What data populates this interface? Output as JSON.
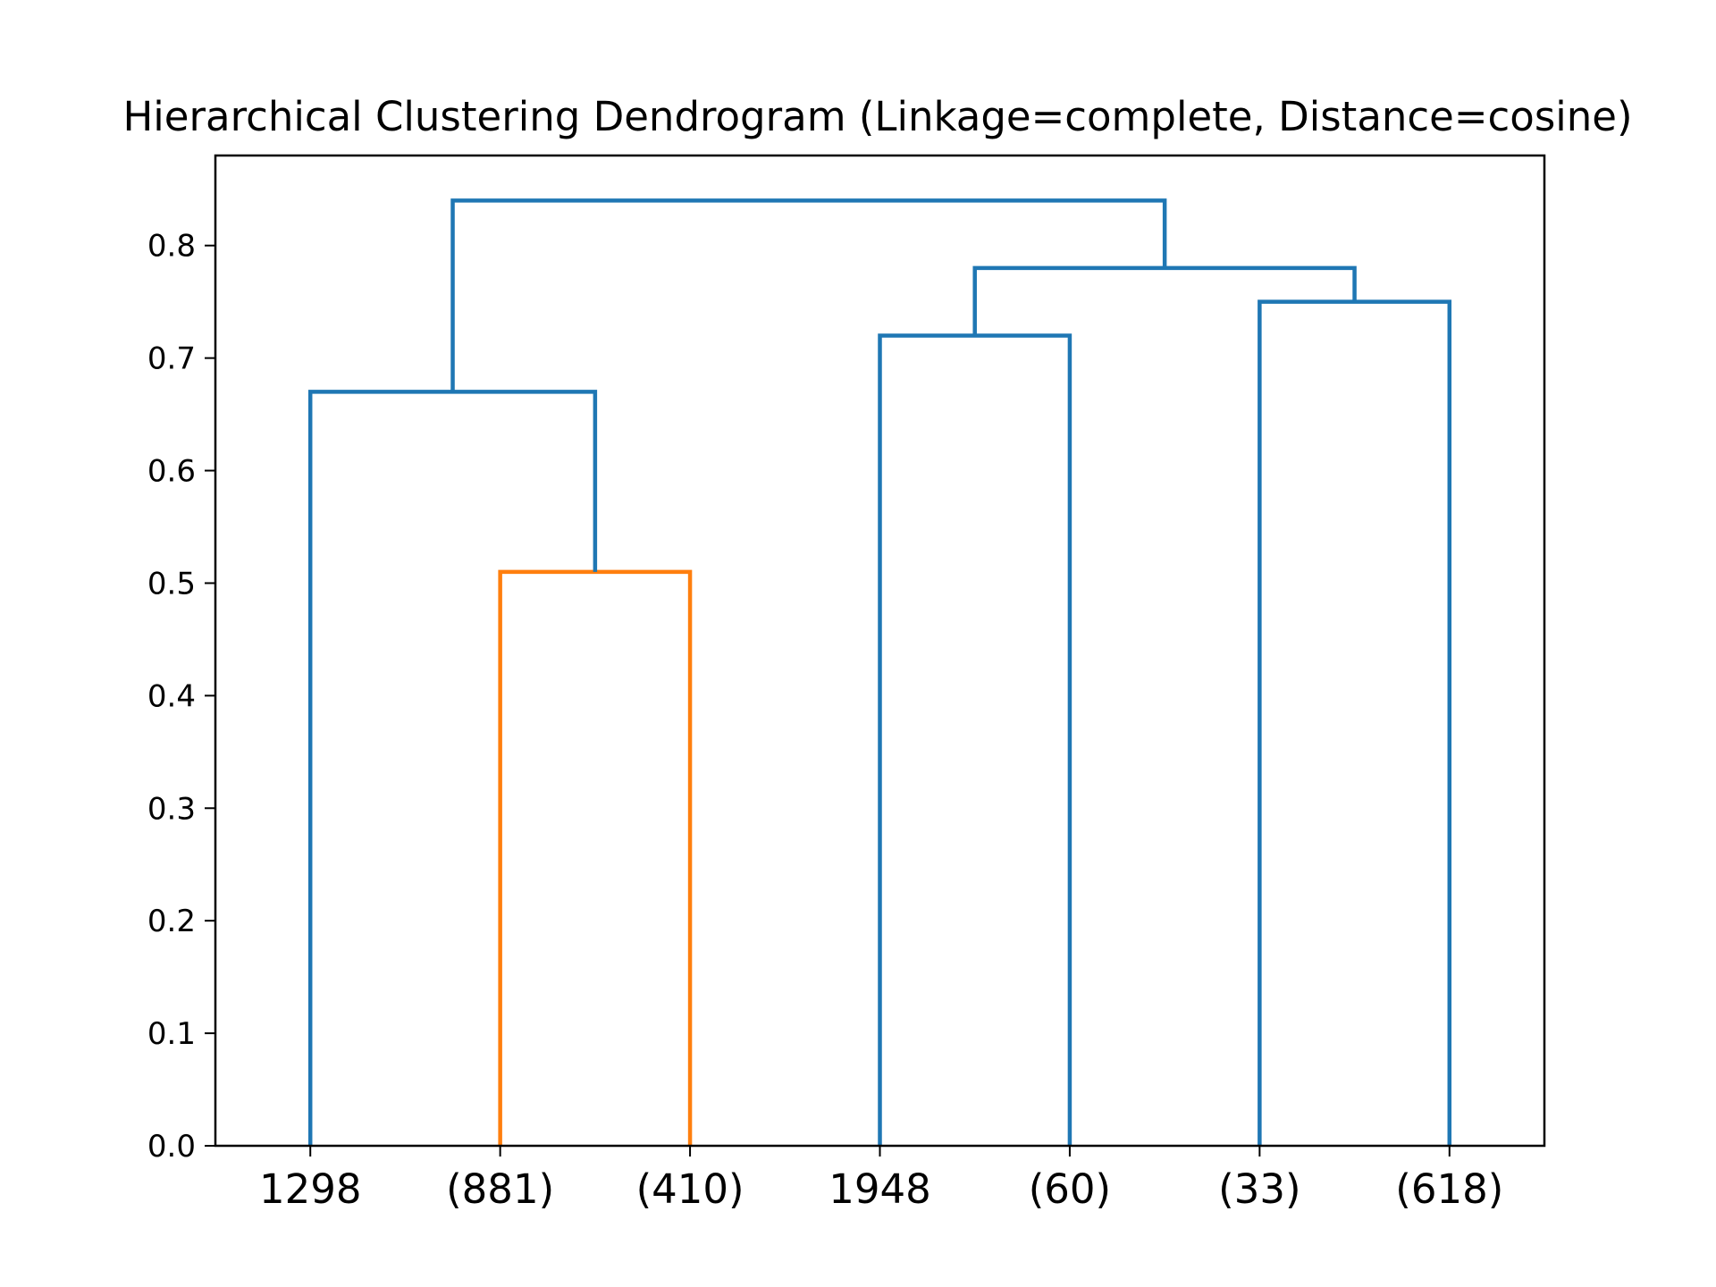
{
  "chart_data": {
    "type": "dendrogram",
    "title": "Hierarchical Clustering Dendrogram (Linkage=complete, Distance=cosine)",
    "xlabel": "",
    "ylabel": "",
    "ylim": [
      0,
      0.88
    ],
    "yticks": [
      "0.0",
      "0.1",
      "0.2",
      "0.3",
      "0.4",
      "0.5",
      "0.6",
      "0.7",
      "0.8"
    ],
    "ytick_values": [
      0,
      0.1,
      0.2,
      0.3,
      0.4,
      0.5,
      0.6,
      0.7,
      0.8
    ],
    "leaves": [
      "1298",
      "(881)",
      "(410)",
      "1948",
      "(60)",
      "(33)",
      "(618)"
    ],
    "colors": {
      "cluster": "#ff7f0e",
      "above": "#1f77b4"
    },
    "merges": [
      {
        "left": "(881)",
        "right": "(410)",
        "height": 0.51,
        "color": "#ff7f0e"
      },
      {
        "left": "1298",
        "right": "(881)+(410)",
        "height": 0.67,
        "color": "#1f77b4"
      },
      {
        "left": "1948",
        "right": "(60)",
        "height": 0.72,
        "color": "#1f77b4"
      },
      {
        "left": "(33)",
        "right": "(618)",
        "height": 0.75,
        "color": "#1f77b4"
      },
      {
        "left": "1948+(60)",
        "right": "(33)+(618)",
        "height": 0.78,
        "color": "#1f77b4"
      },
      {
        "left": "1298+(881)+(410)",
        "right": "1948+(60)+(33)+(618)",
        "height": 0.84,
        "color": "#1f77b4"
      }
    ],
    "grid": false,
    "legend": "none"
  }
}
